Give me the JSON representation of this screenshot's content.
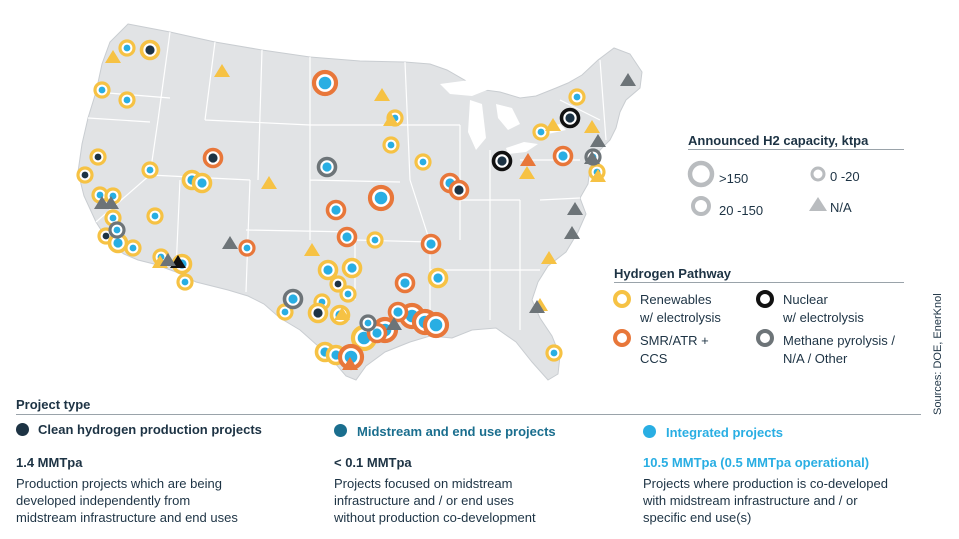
{
  "capacity_legend": {
    "title": "Announced H2 capacity, ktpa",
    "items": [
      {
        "label": ">150",
        "symbol": "large-ring"
      },
      {
        "label": "0 -20",
        "symbol": "small-ring"
      },
      {
        "label": "20 -150",
        "symbol": "medium-ring"
      },
      {
        "label": "N/A",
        "symbol": "triangle"
      }
    ]
  },
  "pathway_legend": {
    "title": "Hydrogen Pathway",
    "items": [
      {
        "line1": "Renewables",
        "line2": "w/ electrolysis",
        "color": "#f6c244"
      },
      {
        "line1": "Nuclear",
        "line2": "w/ electrolysis",
        "color": "#111111"
      },
      {
        "line1": "SMR/ATR +",
        "line2": "CCS",
        "color": "#e8773a"
      },
      {
        "line1": "Methane pyrolysis /",
        "line2": "N/A / Other",
        "color": "#6d7478"
      }
    ]
  },
  "project_type": {
    "title": "Project type",
    "columns": [
      {
        "heading": "Clean hydrogen production projects",
        "value": "1.4 MMTpa",
        "desc": [
          "Production projects which are being",
          "developed independently from",
          "midstream infrastructure and end uses"
        ],
        "dot_color": "#1d3344",
        "head_color": "#1d3344"
      },
      {
        "heading": "Midstream and end use projects",
        "value": "< 0.1 MMTpa",
        "desc": [
          "Projects focused on midstream",
          "infrastructure and / or end uses",
          "without production co-development"
        ],
        "dot_color": "#1a6e8e",
        "head_color": "#1a6e8e"
      },
      {
        "heading": "Integrated projects",
        "value": "10.5 MMTpa (0.5 MMTpa operational)",
        "desc": [
          "Projects where production is co-developed",
          "with midstream infrastructure and / or",
          "specific end use(s)"
        ],
        "dot_color": "#29aee3",
        "head_color": "#29aee3"
      }
    ]
  },
  "source": "Sources: DOE, EnerKnol",
  "colors": {
    "renewables": "#f6c244",
    "smr": "#e8773a",
    "nuclear": "#111111",
    "methane": "#6d7478",
    "production": "#1d3344",
    "midstream": "#1a6e8e",
    "integrated": "#29aee3",
    "land": "#e1e3e5",
    "border": "#ffffff"
  },
  "map_markers": {
    "rings": [
      [
        "renewables",
        "integrated",
        "s",
        127,
        48
      ],
      [
        "renewables",
        "production",
        "m",
        150,
        50
      ],
      [
        "renewables",
        "integrated",
        "s",
        102,
        90
      ],
      [
        "renewables",
        "integrated",
        "s",
        127,
        100
      ],
      [
        "renewables",
        "production",
        "s",
        98,
        157
      ],
      [
        "renewables",
        "production",
        "s",
        85,
        175
      ],
      [
        "renewables",
        "integrated",
        "s",
        150,
        170
      ],
      [
        "renewables",
        "integrated",
        "m",
        192,
        180
      ],
      [
        "renewables",
        "integrated",
        "m",
        202,
        183
      ],
      [
        "renewables",
        "integrated",
        "s",
        100,
        195
      ],
      [
        "renewables",
        "integrated",
        "s",
        113,
        196
      ],
      [
        "renewables",
        "integrated",
        "s",
        155,
        216
      ],
      [
        "renewables",
        "integrated",
        "s",
        113,
        218
      ],
      [
        "renewables",
        "production",
        "s",
        106,
        236
      ],
      [
        "renewables",
        "integrated",
        "m",
        118,
        243
      ],
      [
        "renewables",
        "integrated",
        "s",
        133,
        248
      ],
      [
        "renewables",
        "integrated",
        "s",
        161,
        257
      ],
      [
        "renewables",
        "integrated",
        "m",
        182,
        264
      ],
      [
        "renewables",
        "integrated",
        "s",
        185,
        282
      ],
      [
        "renewables",
        "integrated",
        "m",
        328,
        270
      ],
      [
        "renewables",
        "integrated",
        "m",
        352,
        268
      ],
      [
        "renewables",
        "production",
        "s",
        338,
        284
      ],
      [
        "renewables",
        "integrated",
        "s",
        348,
        294
      ],
      [
        "renewables",
        "integrated",
        "s",
        375,
        240
      ],
      [
        "renewables",
        "integrated",
        "s",
        322,
        302
      ],
      [
        "renewables",
        "production",
        "m",
        318,
        313
      ],
      [
        "renewables",
        "integrated",
        "m",
        340,
        315
      ],
      [
        "renewables",
        "integrated",
        "m",
        325,
        352
      ],
      [
        "renewables",
        "integrated",
        "m",
        336,
        355
      ],
      [
        "renewables",
        "integrated",
        "s",
        395,
        118
      ],
      [
        "renewables",
        "integrated",
        "s",
        391,
        145
      ],
      [
        "renewables",
        "integrated",
        "s",
        423,
        162
      ],
      [
        "renewables",
        "integrated",
        "s",
        577,
        97
      ],
      [
        "renewables",
        "integrated",
        "s",
        541,
        132
      ],
      [
        "renewables",
        "integrated",
        "s",
        597,
        172
      ],
      [
        "renewables",
        "integrated",
        "m",
        438,
        278
      ],
      [
        "renewables",
        "integrated",
        "s",
        554,
        353
      ],
      [
        "renewables",
        "integrated",
        "l",
        364,
        338
      ],
      [
        "renewables",
        "integrated",
        "s",
        285,
        312
      ],
      [
        "smr",
        "integrated",
        "l",
        325,
        83
      ],
      [
        "smr",
        "production",
        "m",
        213,
        158
      ],
      [
        "smr",
        "integrated",
        "m",
        336,
        210
      ],
      [
        "smr",
        "integrated",
        "l",
        381,
        198
      ],
      [
        "smr",
        "integrated",
        "m",
        347,
        237
      ],
      [
        "smr",
        "integrated",
        "s",
        247,
        248
      ],
      [
        "smr",
        "integrated",
        "m",
        431,
        244
      ],
      [
        "smr",
        "integrated",
        "m",
        450,
        183
      ],
      [
        "smr",
        "production",
        "m",
        459,
        190
      ],
      [
        "smr",
        "integrated",
        "m",
        563,
        156
      ],
      [
        "smr",
        "integrated",
        "m",
        405,
        283
      ],
      [
        "smr",
        "integrated",
        "l",
        385,
        330
      ],
      [
        "smr",
        "integrated",
        "l",
        412,
        316
      ],
      [
        "smr",
        "integrated",
        "l",
        425,
        322
      ],
      [
        "smr",
        "integrated",
        "l",
        436,
        325
      ],
      [
        "smr",
        "integrated",
        "m",
        398,
        312
      ],
      [
        "smr",
        "integrated",
        "m",
        377,
        333
      ],
      [
        "smr",
        "integrated",
        "l",
        351,
        357
      ],
      [
        "nuclear",
        "production",
        "m",
        570,
        118
      ],
      [
        "nuclear",
        "production",
        "m",
        502,
        161
      ],
      [
        "methane",
        "integrated",
        "m",
        327,
        167
      ],
      [
        "methane",
        "integrated",
        "m",
        293,
        299
      ],
      [
        "methane",
        "integrated",
        "s",
        117,
        230
      ],
      [
        "methane",
        "integrated",
        "s",
        593,
        157
      ],
      [
        "methane",
        "integrated",
        "s",
        368,
        323
      ]
    ],
    "triangles": [
      [
        "renewables",
        113,
        57
      ],
      [
        "renewables",
        222,
        71
      ],
      [
        "renewables",
        382,
        95
      ],
      [
        "renewables",
        269,
        183
      ],
      [
        "renewables",
        391,
        120
      ],
      [
        "renewables",
        312,
        250
      ],
      [
        "renewables",
        549,
        258
      ],
      [
        "renewables",
        553,
        125
      ],
      [
        "renewables",
        592,
        127
      ],
      [
        "renewables",
        527,
        173
      ],
      [
        "renewables",
        598,
        176
      ],
      [
        "renewables",
        540,
        305
      ],
      [
        "renewables",
        160,
        262
      ],
      [
        "renewables",
        342,
        314
      ],
      [
        "smr",
        528,
        160
      ],
      [
        "smr",
        350,
        364
      ],
      [
        "nuclear",
        178,
        262
      ],
      [
        "methane",
        628,
        80
      ],
      [
        "methane",
        598,
        141
      ],
      [
        "methane",
        592,
        158
      ],
      [
        "methane",
        575,
        209
      ],
      [
        "methane",
        572,
        233
      ],
      [
        "methane",
        230,
        243
      ],
      [
        "methane",
        102,
        203
      ],
      [
        "methane",
        111,
        203
      ],
      [
        "methane",
        168,
        260
      ],
      [
        "methane",
        537,
        307
      ],
      [
        "methane",
        394,
        324
      ]
    ]
  }
}
